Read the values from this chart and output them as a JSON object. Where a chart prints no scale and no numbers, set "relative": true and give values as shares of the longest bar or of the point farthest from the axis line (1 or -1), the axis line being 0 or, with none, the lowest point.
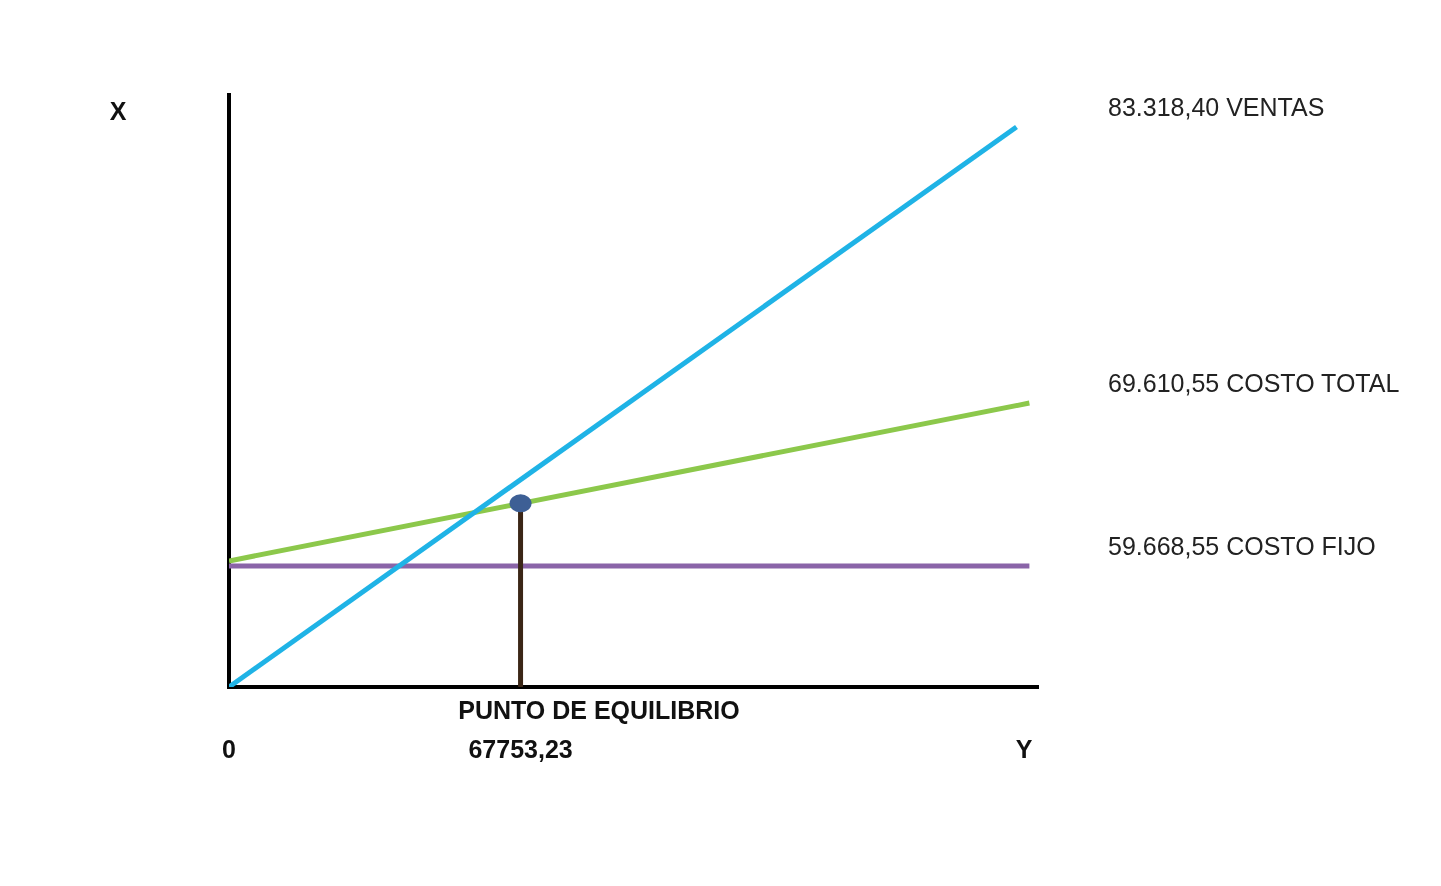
{
  "chart_data": {
    "type": "line",
    "relative": true,
    "xlabel": "Y",
    "ylabel": "X",
    "xlim": [
      0,
      188000
    ],
    "xticks": [
      0,
      {
        "value": 67753.23,
        "label": "67753,23"
      }
    ],
    "series": [
      {
        "name": "83.318,40 VENTAS",
        "color": "#1fb3e6",
        "x": [
          0,
          183000
        ],
        "values": [
          0,
          1
        ]
      },
      {
        "name": "69.610,55 COSTO TOTAL",
        "color": "#8cc84b",
        "x": [
          0,
          186000
        ],
        "values": [
          0.225,
          0.507
        ]
      },
      {
        "name": "59.668,55 COSTO FIJO",
        "color": "#8a64a8",
        "x": [
          0,
          186000
        ],
        "values": [
          0.216,
          0.216
        ]
      },
      {
        "type": "lollipop",
        "color": "#3d5f95",
        "x": [
          67753.23
        ],
        "values": [
          0.328
        ]
      }
    ],
    "annotations": [
      "PUNTO DE EQUILIBRIO"
    ]
  }
}
